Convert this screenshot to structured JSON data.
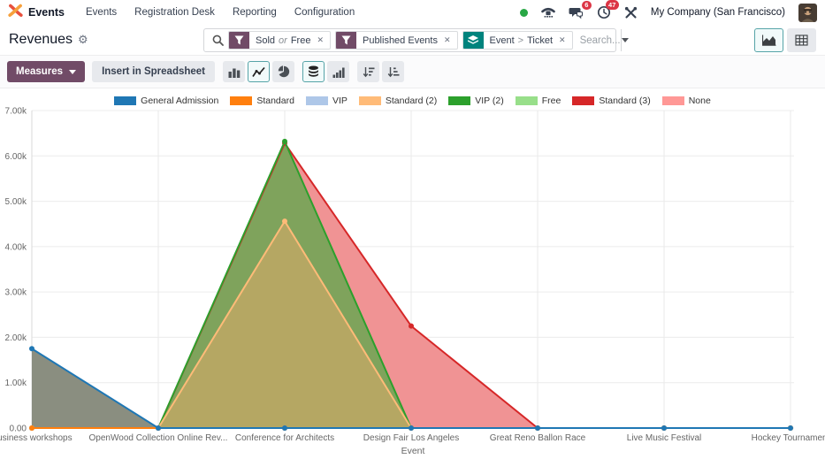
{
  "navbar": {
    "brand": "Events",
    "menu_items": [
      "Events",
      "Registration Desk",
      "Reporting",
      "Configuration"
    ],
    "systray": {
      "messages_badge": "6",
      "activities_badge": "47",
      "company": "My Company (San Francisco)"
    }
  },
  "control_panel": {
    "title": "Revenues",
    "search": {
      "placeholder": "Search...",
      "facets": [
        {
          "type": "filter",
          "parts": [
            "Sold",
            "Free"
          ],
          "separator": "or"
        },
        {
          "type": "filter",
          "parts": [
            "Published Events"
          ],
          "separator": ""
        },
        {
          "type": "groupby",
          "parts": [
            "Event",
            "Ticket"
          ],
          "separator": ">"
        }
      ]
    },
    "view_switcher": [
      {
        "name": "graph",
        "active": true
      },
      {
        "name": "pivot",
        "active": false
      }
    ]
  },
  "toolbar": {
    "measures_label": "Measures",
    "insert_spreadsheet_label": "Insert in Spreadsheet",
    "chart_type_buttons": [
      {
        "name": "bar",
        "active": false
      },
      {
        "name": "line",
        "active": true
      },
      {
        "name": "pie",
        "active": false
      },
      {
        "name": "stacked",
        "active": true
      },
      {
        "name": "cumulative",
        "active": false
      },
      {
        "name": "sort-desc",
        "active": false
      },
      {
        "name": "sort-asc",
        "active": false
      }
    ]
  },
  "colors": {
    "primary": "#714B67",
    "accent_teal": "#017e84",
    "badge_red": "#dc3545",
    "presence_green": "#28a745",
    "grid": "#ececec",
    "axis_text": "#666666"
  },
  "chart_data": {
    "type": "line",
    "title": "",
    "xlabel": "Event",
    "ylabel": "",
    "ylim": [
      0,
      7000
    ],
    "y_ticks": [
      "0.00",
      "1.00k",
      "2.00k",
      "3.00k",
      "4.00k",
      "5.00k",
      "6.00k",
      "7.00k"
    ],
    "grid": true,
    "legend_position": "top",
    "categories": [
      "Business workshops",
      "OpenWood Collection Online Rev...",
      "Conference for Architects",
      "Design Fair Los Angeles",
      "Great Reno Ballon Race",
      "Live Music Festival",
      "Hockey Tournament"
    ],
    "series": [
      {
        "name": "General Admission",
        "color": "#1f77b4",
        "values": [
          1750,
          0,
          0,
          0,
          0,
          0,
          0
        ]
      },
      {
        "name": "Standard",
        "color": "#ff7f0e",
        "values": [
          0,
          0,
          0,
          0,
          0,
          0,
          0
        ]
      },
      {
        "name": "VIP",
        "color": "#aec7e8",
        "values": [
          0,
          0,
          0,
          0,
          0,
          0,
          0
        ]
      },
      {
        "name": "Standard (2)",
        "color": "#ffbb78",
        "values": [
          0,
          0,
          4560,
          0,
          0,
          0,
          0
        ]
      },
      {
        "name": "VIP (2)",
        "color": "#2ca02c",
        "values": [
          0,
          0,
          6320,
          0,
          0,
          0,
          0
        ]
      },
      {
        "name": "Free",
        "color": "#98df8a",
        "values": [
          0,
          0,
          0,
          0,
          0,
          0,
          0
        ]
      },
      {
        "name": "Standard (3)",
        "color": "#d62728",
        "values": [
          0,
          0,
          6280,
          2250,
          0,
          0,
          0
        ]
      },
      {
        "name": "None",
        "color": "#ff9896",
        "values": [
          0,
          0,
          0,
          0,
          0,
          0,
          0
        ]
      }
    ],
    "area_fills": [
      {
        "series": "Standard (3)",
        "color": "#F09394"
      },
      {
        "series": "VIP (2)",
        "color": "#7FA35C"
      },
      {
        "series": "Standard (2)",
        "color": "#B5A763"
      },
      {
        "series": "General Admission",
        "color": "#8A8E80"
      }
    ]
  }
}
